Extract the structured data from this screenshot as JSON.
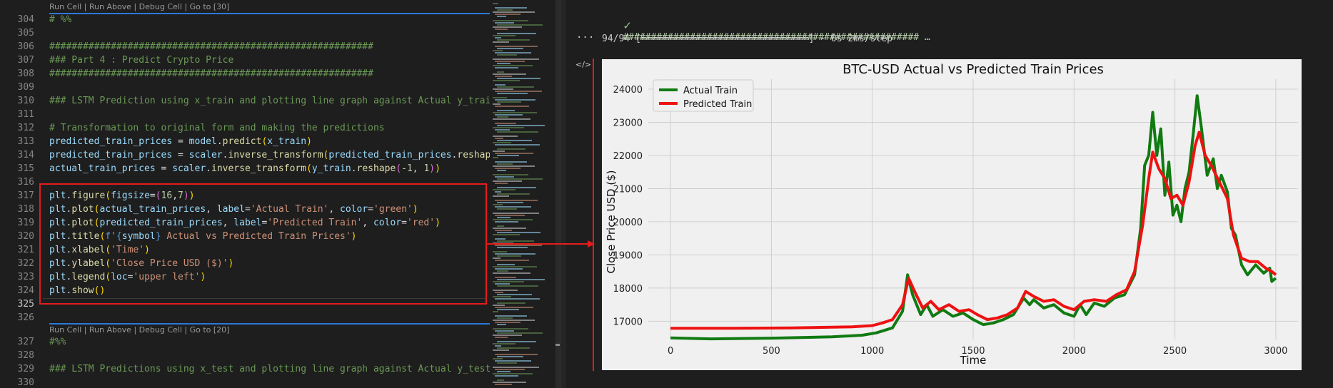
{
  "editor": {
    "lens_top": "Run Cell | Run Above | Debug Cell | Go to [30]",
    "lens_mid": "Run Cell | Run Above | Debug Cell | Go to [20]",
    "line_numbers": [
      "304",
      "305",
      "306",
      "307",
      "308",
      "309",
      "310",
      "311",
      "312",
      "313",
      "314",
      "315",
      "316",
      "317",
      "318",
      "319",
      "320",
      "321",
      "322",
      "323",
      "324",
      "325",
      "326",
      "327",
      "328",
      "329",
      "330"
    ],
    "lines": {
      "l304": "# %%",
      "l306": "##########################################################",
      "l307": "### Part 4 : Predict Crypto Price",
      "l308": "##########################################################",
      "l310": "### LSTM Prediction using x_train and plotting line graph against Actual y_train",
      "l312": "# Transformation to original form and making the predictions",
      "l327": "#%%",
      "l329": "### LSTM Predictions using x_test and plotting line graph against Actual y_test"
    }
  },
  "output": {
    "cell_header": "##################################################### …",
    "progress": "94/94 [==============================] - 0s 2ms/step",
    "more_icon": "ellipsis-icon",
    "code_icon": "code-icon"
  },
  "colors": {
    "actual": "#117a11",
    "predicted": "#ee1111",
    "highlight": "#e51c1c",
    "plot_bg": "#f0f0f0"
  },
  "chart_data": {
    "type": "line",
    "title": "BTC-USD Actual vs Predicted Train Prices",
    "xlabel": "Time",
    "ylabel": "Close Price USD ($)",
    "xlim": [
      -110,
      3110
    ],
    "ylim": [
      16450,
      24300
    ],
    "x_ticks": [
      0,
      500,
      1000,
      1500,
      2000,
      2500,
      3000
    ],
    "y_ticks": [
      17000,
      18000,
      19000,
      20000,
      21000,
      22000,
      23000,
      24000
    ],
    "legend_position": "upper left",
    "grid": true,
    "series": [
      {
        "name": "Actual Train",
        "color": "#117a11",
        "points": [
          [
            0,
            16500
          ],
          [
            200,
            16470
          ],
          [
            500,
            16490
          ],
          [
            800,
            16530
          ],
          [
            950,
            16580
          ],
          [
            1020,
            16650
          ],
          [
            1100,
            16800
          ],
          [
            1150,
            17300
          ],
          [
            1175,
            18400
          ],
          [
            1200,
            17800
          ],
          [
            1240,
            17200
          ],
          [
            1270,
            17500
          ],
          [
            1300,
            17150
          ],
          [
            1350,
            17350
          ],
          [
            1400,
            17150
          ],
          [
            1450,
            17250
          ],
          [
            1500,
            17050
          ],
          [
            1550,
            16900
          ],
          [
            1600,
            16950
          ],
          [
            1650,
            17050
          ],
          [
            1700,
            17200
          ],
          [
            1750,
            17700
          ],
          [
            1780,
            17500
          ],
          [
            1800,
            17650
          ],
          [
            1850,
            17400
          ],
          [
            1900,
            17500
          ],
          [
            1950,
            17250
          ],
          [
            2000,
            17150
          ],
          [
            2030,
            17500
          ],
          [
            2060,
            17200
          ],
          [
            2100,
            17550
          ],
          [
            2150,
            17450
          ],
          [
            2200,
            17700
          ],
          [
            2250,
            17800
          ],
          [
            2300,
            18400
          ],
          [
            2330,
            19800
          ],
          [
            2350,
            21700
          ],
          [
            2370,
            22000
          ],
          [
            2390,
            23300
          ],
          [
            2410,
            22000
          ],
          [
            2430,
            22800
          ],
          [
            2450,
            20800
          ],
          [
            2470,
            21800
          ],
          [
            2490,
            20200
          ],
          [
            2510,
            20500
          ],
          [
            2530,
            20000
          ],
          [
            2550,
            21000
          ],
          [
            2570,
            21500
          ],
          [
            2590,
            22600
          ],
          [
            2610,
            23800
          ],
          [
            2630,
            22900
          ],
          [
            2660,
            21400
          ],
          [
            2690,
            21900
          ],
          [
            2710,
            21000
          ],
          [
            2730,
            21400
          ],
          [
            2760,
            20900
          ],
          [
            2780,
            19800
          ],
          [
            2800,
            19600
          ],
          [
            2830,
            18700
          ],
          [
            2860,
            18400
          ],
          [
            2900,
            18700
          ],
          [
            2940,
            18450
          ],
          [
            2970,
            18600
          ],
          [
            2980,
            18200
          ],
          [
            3000,
            18300
          ]
        ]
      },
      {
        "name": "Predicted Train",
        "color": "#ee1111",
        "points": [
          [
            0,
            16790
          ],
          [
            300,
            16790
          ],
          [
            600,
            16800
          ],
          [
            900,
            16830
          ],
          [
            1000,
            16870
          ],
          [
            1050,
            16950
          ],
          [
            1100,
            17050
          ],
          [
            1150,
            17500
          ],
          [
            1180,
            18300
          ],
          [
            1210,
            17900
          ],
          [
            1250,
            17400
          ],
          [
            1290,
            17600
          ],
          [
            1330,
            17350
          ],
          [
            1380,
            17500
          ],
          [
            1430,
            17300
          ],
          [
            1480,
            17350
          ],
          [
            1520,
            17200
          ],
          [
            1570,
            17050
          ],
          [
            1620,
            17100
          ],
          [
            1670,
            17200
          ],
          [
            1720,
            17400
          ],
          [
            1760,
            17900
          ],
          [
            1800,
            17750
          ],
          [
            1850,
            17600
          ],
          [
            1900,
            17650
          ],
          [
            1950,
            17450
          ],
          [
            2000,
            17350
          ],
          [
            2050,
            17600
          ],
          [
            2100,
            17650
          ],
          [
            2160,
            17600
          ],
          [
            2210,
            17800
          ],
          [
            2260,
            17950
          ],
          [
            2300,
            18500
          ],
          [
            2340,
            19900
          ],
          [
            2370,
            21300
          ],
          [
            2390,
            22100
          ],
          [
            2420,
            21600
          ],
          [
            2450,
            21300
          ],
          [
            2480,
            20700
          ],
          [
            2510,
            20800
          ],
          [
            2540,
            20500
          ],
          [
            2570,
            21200
          ],
          [
            2600,
            22300
          ],
          [
            2620,
            22700
          ],
          [
            2650,
            22000
          ],
          [
            2680,
            21700
          ],
          [
            2720,
            21200
          ],
          [
            2760,
            20700
          ],
          [
            2790,
            19600
          ],
          [
            2830,
            18900
          ],
          [
            2870,
            18800
          ],
          [
            2910,
            18800
          ],
          [
            2950,
            18600
          ],
          [
            2980,
            18500
          ],
          [
            3000,
            18400
          ]
        ]
      }
    ]
  }
}
